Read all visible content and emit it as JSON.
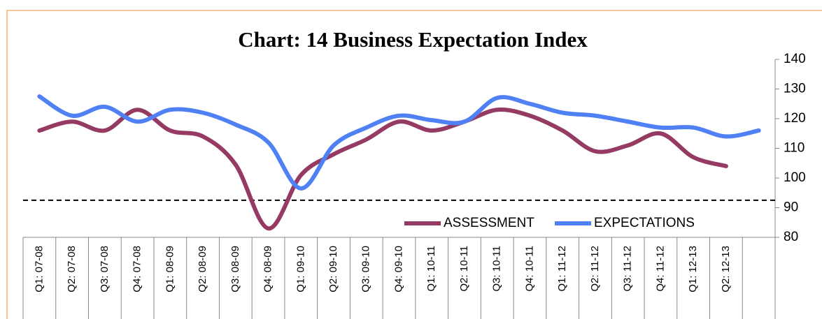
{
  "chart_data": {
    "type": "line",
    "title": "Chart: 14  Business Expectation Index",
    "categories": [
      "Q1: 07-08",
      "Q2: 07-08",
      "Q3: 07-08",
      "Q4: 07-08",
      "Q1: 08-09",
      "Q2: 08-09",
      "Q3: 08-09",
      "Q4: 08-09",
      "Q1: 09-10",
      "Q2: 09-10",
      "Q3: 09-10",
      "Q4: 09-10",
      "Q1: 10-11",
      "Q2: 10-11",
      "Q3: 10-11",
      "Q4: 10-11",
      "Q1: 11-12",
      "Q2: 11-12",
      "Q3: 11-12",
      "Q4: 11-12",
      "Q1: 12-13",
      "Q2: 12-13",
      null
    ],
    "series": [
      {
        "name": "ASSESSMENT",
        "color": "#953a63",
        "values": [
          116,
          119,
          116,
          123,
          116,
          114,
          104.5,
          83,
          101,
          108,
          113,
          119,
          116,
          119,
          123,
          121,
          116,
          109,
          111,
          115,
          107,
          104,
          null
        ]
      },
      {
        "name": "EXPECTATIONS",
        "color": "#4f81f5",
        "values": [
          127.5,
          121,
          124,
          119,
          123,
          122,
          118,
          112,
          96.5,
          111,
          117,
          121,
          119.5,
          119,
          127,
          125,
          122,
          121,
          119,
          117,
          117,
          114,
          116
        ]
      }
    ],
    "reference_line": 92.5,
    "ylim": [
      80,
      140
    ],
    "yticks": [
      80,
      90,
      100,
      110,
      120,
      130,
      140
    ],
    "y_axis_side": "right",
    "grid": false,
    "legend": "bottom-right"
  }
}
